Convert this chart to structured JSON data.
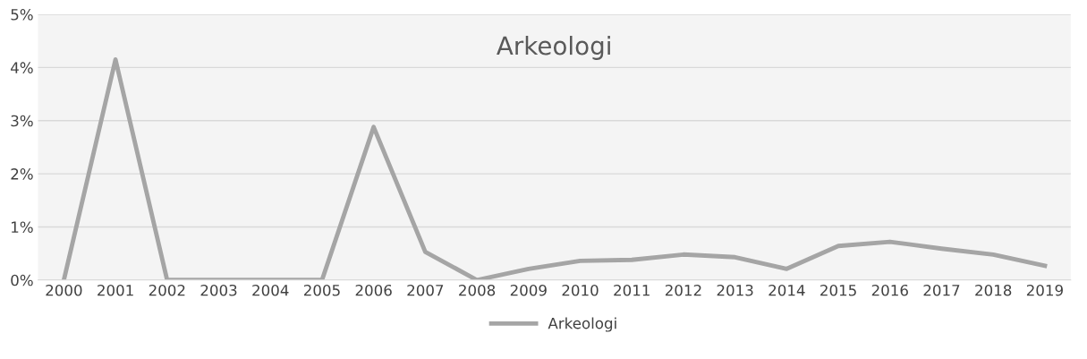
{
  "chart_data": {
    "type": "line",
    "title": "Arkeologi",
    "categories": [
      "2000",
      "2001",
      "2002",
      "2003",
      "2004",
      "2005",
      "2006",
      "2007",
      "2008",
      "2009",
      "2010",
      "2011",
      "2012",
      "2013",
      "2014",
      "2015",
      "2016",
      "2017",
      "2018",
      "2019"
    ],
    "series": [
      {
        "name": "Arkeologi",
        "color": "#a5a5a5",
        "values": [
          0,
          4.15,
          0,
          0,
          0,
          0,
          2.88,
          0.53,
          0,
          0.21,
          0.36,
          0.38,
          0.48,
          0.43,
          0.21,
          0.64,
          0.72,
          0.59,
          0.48,
          0.27
        ]
      }
    ],
    "ylim": [
      0,
      5
    ],
    "yticks": [
      {
        "value": 0,
        "label": "0%"
      },
      {
        "value": 1,
        "label": "1%"
      },
      {
        "value": 2,
        "label": "2%"
      },
      {
        "value": 3,
        "label": "3%"
      },
      {
        "value": 4,
        "label": "4%"
      },
      {
        "value": 5,
        "label": "5%"
      }
    ],
    "grid": "y",
    "legend": "bottom",
    "marker": "none",
    "line_style": "solid"
  }
}
